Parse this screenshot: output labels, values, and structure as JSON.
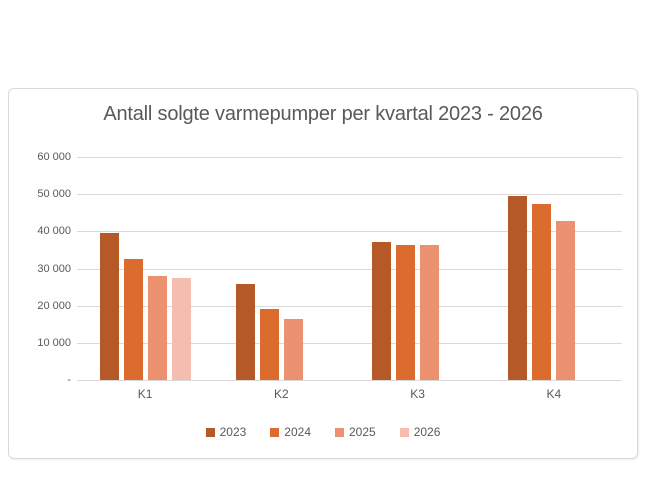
{
  "chart_data": {
    "type": "bar",
    "title": "Antall solgte varmepumper per kvartal 2023 - 2026",
    "categories": [
      "K1",
      "K2",
      "K3",
      "K4"
    ],
    "series": [
      {
        "name": "2023",
        "color": "#B55A27",
        "values": [
          39500,
          25700,
          37000,
          49500
        ]
      },
      {
        "name": "2024",
        "color": "#DB6C2E",
        "values": [
          32500,
          19200,
          36400,
          47400
        ]
      },
      {
        "name": "2025",
        "color": "#EC9170",
        "values": [
          28000,
          16500,
          36400,
          42700
        ]
      },
      {
        "name": "2026",
        "color": "#F4BDB0",
        "values": [
          27500,
          null,
          null,
          null
        ]
      }
    ],
    "ylim": [
      0,
      60000
    ],
    "ytick_step": 10000,
    "ytick_labels_top_to_bottom": [
      "60 000",
      "50 000",
      "40 000",
      "30 000",
      "20 000",
      "10 000",
      "-"
    ],
    "grid": true,
    "legend_position": "bottom",
    "xlabel": "",
    "ylabel": ""
  },
  "styles": {
    "text_color": "#595959",
    "gridline_color": "#D9D9D9",
    "card_border_color": "#D9D9D9",
    "background_color": "#FFFFFF"
  }
}
